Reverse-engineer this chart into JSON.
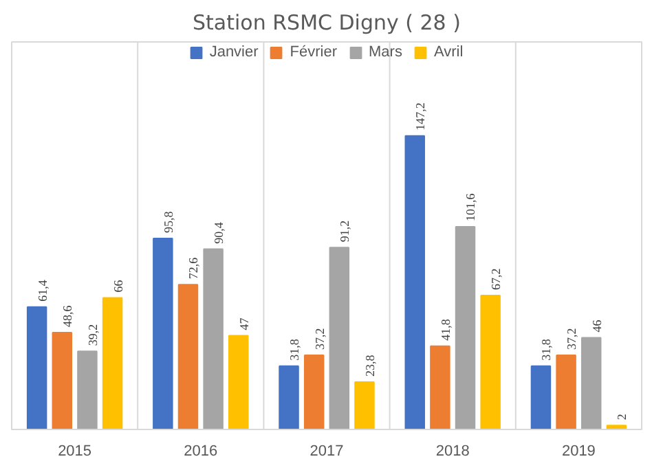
{
  "chart_data": {
    "type": "bar",
    "title": "Station RSMC Digny ( 28 )",
    "categories": [
      "2015",
      "2016",
      "2017",
      "2018",
      "2019"
    ],
    "series": [
      {
        "name": "Janvier",
        "color": "#4472c4",
        "values": [
          61.4,
          95.8,
          31.8,
          147.2,
          31.8
        ],
        "value_labels": [
          "61,4",
          "95,8",
          "31,8",
          "147,2",
          "31,8"
        ]
      },
      {
        "name": "Février",
        "color": "#ed7d31",
        "values": [
          48.6,
          72.6,
          37.2,
          41.8,
          37.2
        ],
        "value_labels": [
          "48,6",
          "72,6",
          "37,2",
          "41,8",
          "37,2"
        ]
      },
      {
        "name": "Mars",
        "color": "#a5a5a5",
        "values": [
          39.2,
          90.4,
          91.2,
          101.6,
          46
        ],
        "value_labels": [
          "39,2",
          "90,4",
          "91,2",
          "101,6",
          "46"
        ]
      },
      {
        "name": "Avril",
        "color": "#ffc000",
        "values": [
          66,
          47,
          23.8,
          67.2,
          2
        ],
        "value_labels": [
          "66",
          "47",
          "23,8",
          "67,2",
          "2"
        ]
      }
    ],
    "grid": "x",
    "legend": "top"
  }
}
